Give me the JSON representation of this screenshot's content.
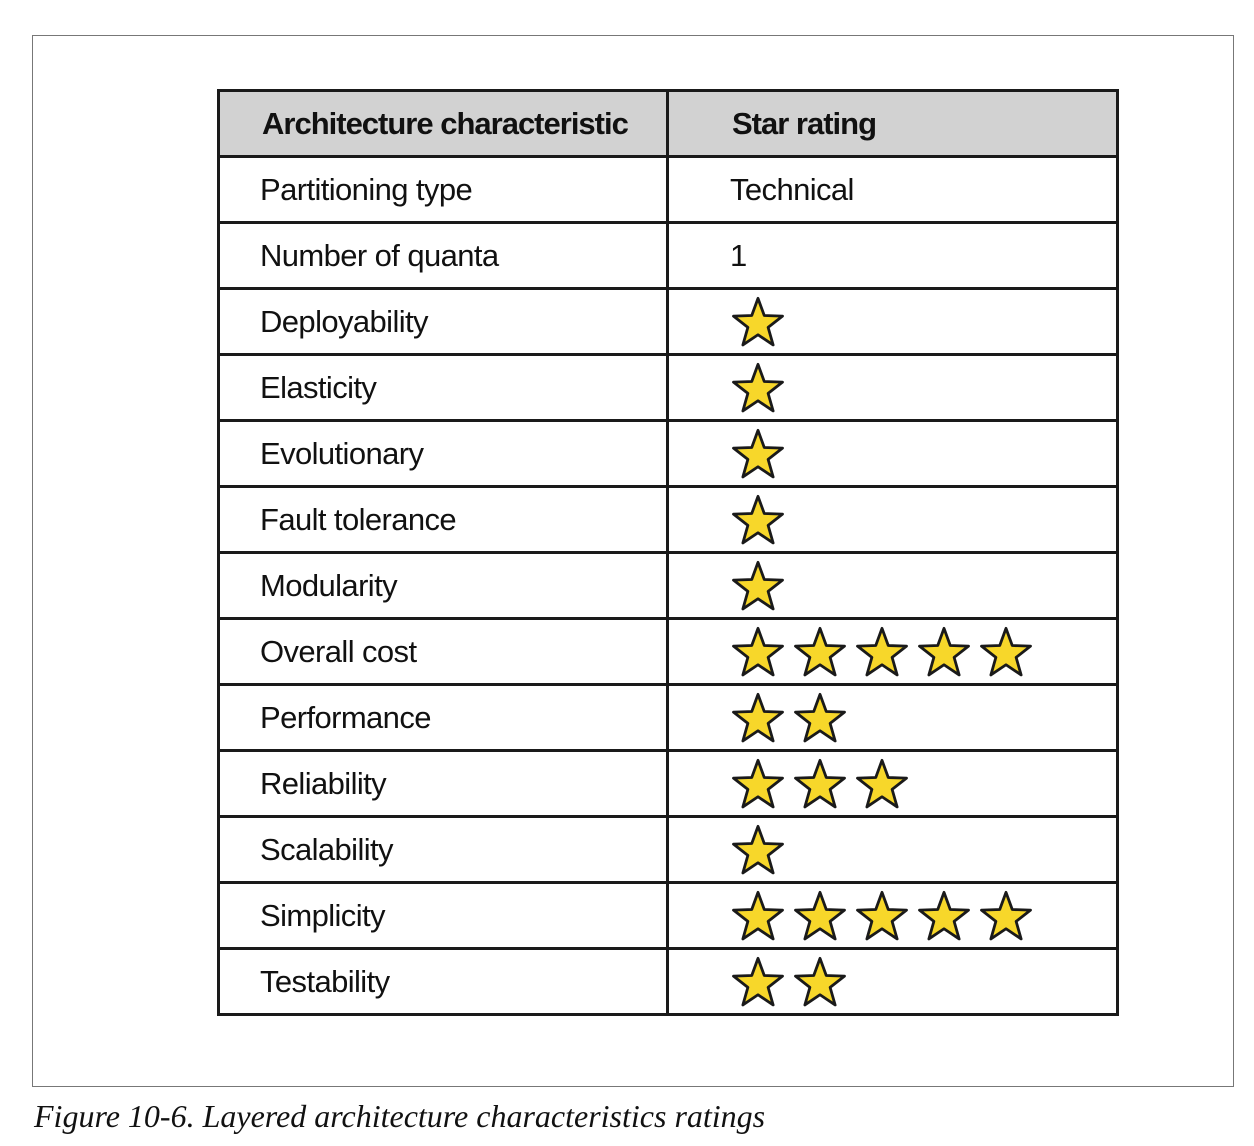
{
  "table": {
    "headers": [
      "Architecture characteristic",
      "Star rating"
    ],
    "rows": [
      {
        "characteristic": "Partitioning type",
        "text": "Technical"
      },
      {
        "characteristic": "Number of quanta",
        "text": "1"
      },
      {
        "characteristic": "Deployability",
        "stars": 1
      },
      {
        "characteristic": "Elasticity",
        "stars": 1
      },
      {
        "characteristic": "Evolutionary",
        "stars": 1
      },
      {
        "characteristic": "Fault tolerance",
        "stars": 1
      },
      {
        "characteristic": "Modularity",
        "stars": 1
      },
      {
        "characteristic": "Overall cost",
        "stars": 5
      },
      {
        "characteristic": "Performance",
        "stars": 2
      },
      {
        "characteristic": "Reliability",
        "stars": 3
      },
      {
        "characteristic": "Scalability",
        "stars": 1
      },
      {
        "characteristic": "Simplicity",
        "stars": 5
      },
      {
        "characteristic": "Testability",
        "stars": 2
      }
    ]
  },
  "star_icon": "star-icon",
  "colors": {
    "star_fill": "#f7d72a",
    "star_stroke": "#1a1a1a",
    "header_bg": "#d2d2d2"
  },
  "caption": "Figure 10-6. Layered architecture characteristics ratings"
}
